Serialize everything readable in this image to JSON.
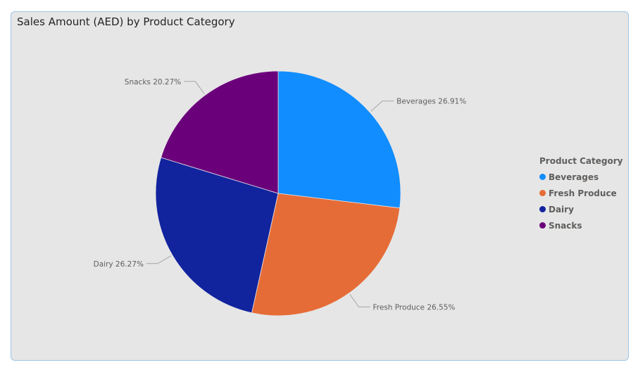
{
  "visual": {
    "title": "Sales Amount (AED) by Product Category"
  },
  "legend": {
    "title": "Product Category"
  },
  "chart_data": {
    "type": "pie",
    "title": "Sales Amount (AED) by Product Category",
    "slices": [
      {
        "name": "Beverages",
        "percent": 26.91,
        "label": "Beverages 26.91%",
        "color": "#118dff"
      },
      {
        "name": "Fresh Produce",
        "percent": 26.55,
        "label": "Fresh Produce 26.55%",
        "color": "#e66c37"
      },
      {
        "name": "Dairy",
        "percent": 26.27,
        "label": "Dairy 26.27%",
        "color": "#12239e"
      },
      {
        "name": "Snacks",
        "percent": 20.27,
        "label": "Snacks 20.27%",
        "color": "#6b007b"
      }
    ],
    "legend_position": "right",
    "start": "top, clockwise"
  }
}
